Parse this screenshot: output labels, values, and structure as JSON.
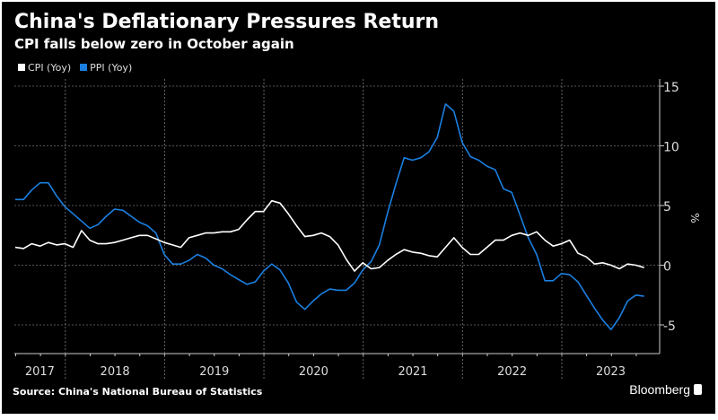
{
  "title": "China's Deflationary Pressures Return",
  "subtitle": "CPI falls below zero in October again",
  "source": "Source: China's National Bureau of Statistics",
  "logo": "Bloomberg",
  "colors": {
    "background": "#000000",
    "cpi": "#ffffff",
    "ppi": "#1a7fe0"
  },
  "chart_data": {
    "type": "line",
    "title": "China's Deflationary Pressures Return",
    "subtitle": "CPI falls below zero in October again",
    "ylabel": "%",
    "yaxis_position": "right",
    "ylim": [
      -7,
      15.5
    ],
    "yticks": [
      15,
      10,
      5,
      0,
      -5
    ],
    "grid": true,
    "legend_placement": "top-left",
    "x_start": "2017-06",
    "x_end": "2023-10",
    "x_frequency": "monthly",
    "year_labels": [
      "2017",
      "2018",
      "2019",
      "2020",
      "2021",
      "2022",
      "2023"
    ],
    "series": [
      {
        "name": "CPI (Yoy)",
        "color": "#ffffff",
        "values": [
          1.5,
          1.4,
          1.8,
          1.6,
          1.9,
          1.7,
          1.8,
          1.5,
          2.9,
          2.1,
          1.8,
          1.8,
          1.9,
          2.1,
          2.3,
          2.5,
          2.5,
          2.2,
          1.9,
          1.7,
          1.5,
          2.3,
          2.5,
          2.7,
          2.7,
          2.8,
          2.8,
          3.0,
          3.8,
          4.5,
          4.5,
          5.4,
          5.2,
          4.3,
          3.3,
          2.4,
          2.5,
          2.7,
          2.4,
          1.7,
          0.5,
          -0.5,
          0.2,
          -0.3,
          -0.2,
          0.4,
          0.9,
          1.3,
          1.1,
          1.0,
          0.8,
          0.7,
          1.5,
          2.3,
          1.5,
          0.9,
          0.9,
          1.5,
          2.1,
          2.1,
          2.5,
          2.7,
          2.5,
          2.8,
          2.1,
          1.6,
          1.8,
          2.1,
          1.0,
          0.7,
          0.1,
          0.2,
          0.0,
          -0.3,
          0.1,
          0.0,
          -0.2
        ]
      },
      {
        "name": "PPI (Yoy)",
        "color": "#1a7fe0",
        "values": [
          5.5,
          5.5,
          6.3,
          6.9,
          6.9,
          5.8,
          4.9,
          4.3,
          3.7,
          3.1,
          3.4,
          4.1,
          4.7,
          4.6,
          4.1,
          3.6,
          3.3,
          2.7,
          0.9,
          0.1,
          0.1,
          0.4,
          0.9,
          0.6,
          0.0,
          -0.3,
          -0.8,
          -1.2,
          -1.6,
          -1.4,
          -0.5,
          0.1,
          -0.4,
          -1.5,
          -3.1,
          -3.7,
          -3.0,
          -2.4,
          -2.0,
          -2.1,
          -2.1,
          -1.5,
          -0.4,
          0.3,
          1.7,
          4.4,
          6.8,
          9.0,
          8.8,
          9.0,
          9.5,
          10.7,
          13.5,
          12.9,
          10.3,
          9.1,
          8.8,
          8.3,
          8.0,
          6.4,
          6.1,
          4.2,
          2.3,
          0.9,
          -1.3,
          -1.3,
          -0.7,
          -0.8,
          -1.4,
          -2.5,
          -3.6,
          -4.6,
          -5.4,
          -4.4,
          -3.0,
          -2.5,
          -2.6
        ]
      }
    ]
  }
}
